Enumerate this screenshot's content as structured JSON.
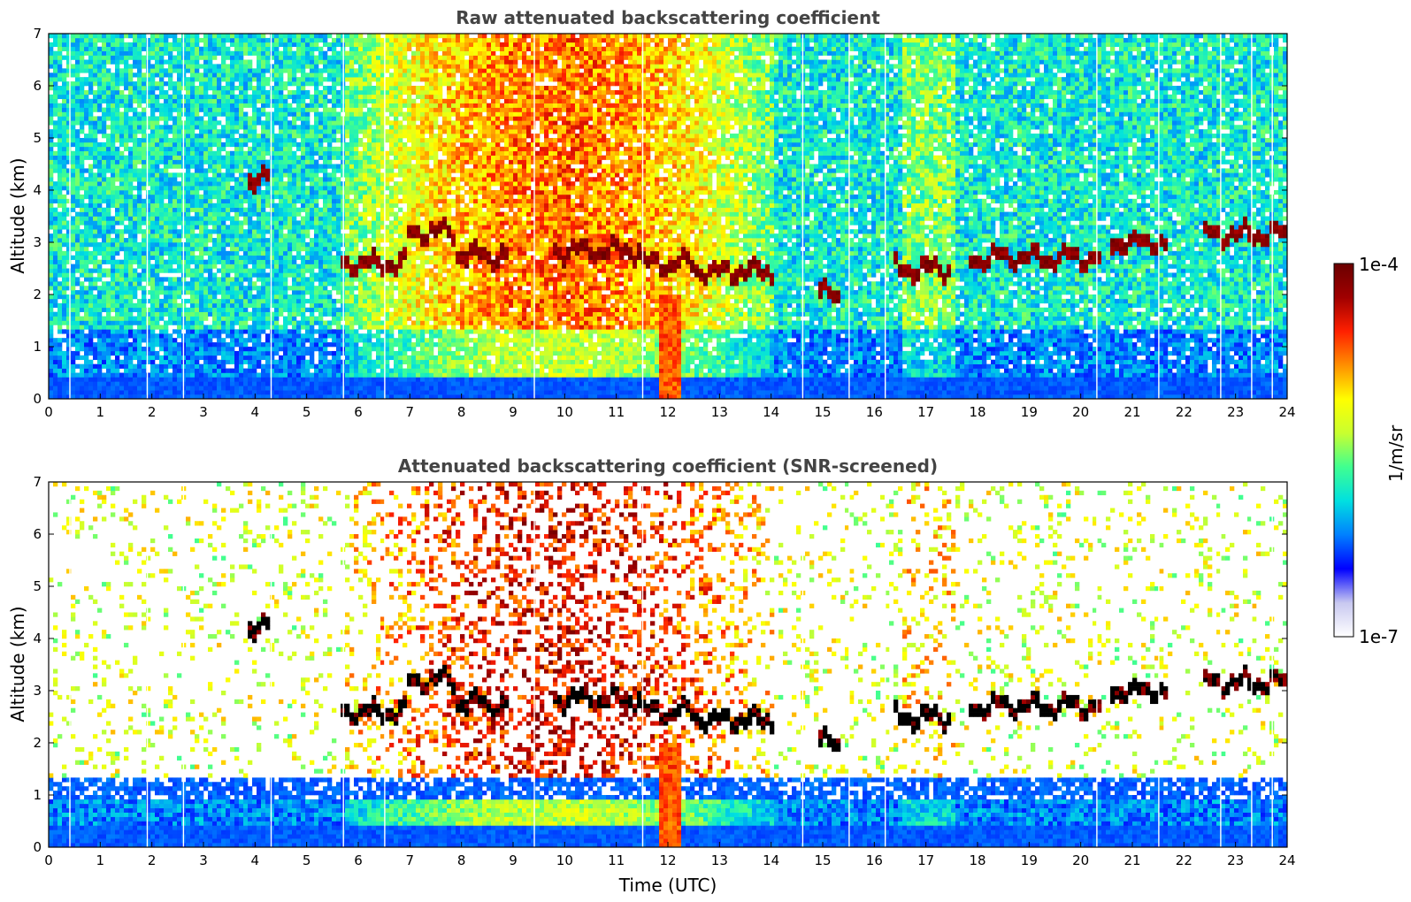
{
  "chart_data": [
    {
      "type": "heatmap",
      "title": "Raw attenuated backscattering coefficient",
      "xlabel": "",
      "ylabel": "Altitude (km)",
      "xlim": [
        0,
        24
      ],
      "ylim": [
        0,
        7
      ],
      "x_ticks": [
        "0",
        "1",
        "2",
        "3",
        "4",
        "5",
        "6",
        "7",
        "8",
        "9",
        "10",
        "11",
        "12",
        "13",
        "14",
        "15",
        "16",
        "17",
        "18",
        "19",
        "20",
        "21",
        "22",
        "23",
        "24"
      ],
      "y_ticks": [
        "0",
        "1",
        "2",
        "3",
        "4",
        "5",
        "6",
        "7"
      ],
      "screened": false,
      "features": {
        "cloud_layers": [
          {
            "t_start": 3.9,
            "t_end": 4.25,
            "alt_km": 4.22
          },
          {
            "t_start": 5.7,
            "t_end": 6.95,
            "alt_km": 2.58
          },
          {
            "t_start": 6.95,
            "t_end": 7.85,
            "alt_km": 3.2
          },
          {
            "t_start": 7.85,
            "t_end": 8.95,
            "alt_km": 2.75
          },
          {
            "t_start": 9.8,
            "t_end": 11.5,
            "alt_km": 2.85
          },
          {
            "t_start": 11.5,
            "t_end": 12.5,
            "alt_km": 2.6
          },
          {
            "t_start": 12.5,
            "t_end": 14.05,
            "alt_km": 2.45
          },
          {
            "t_start": 14.95,
            "t_end": 15.3,
            "alt_km": 2.0
          },
          {
            "t_start": 16.4,
            "t_end": 17.5,
            "alt_km": 2.5
          },
          {
            "t_start": 17.8,
            "t_end": 20.4,
            "alt_km": 2.7
          },
          {
            "t_start": 20.6,
            "t_end": 21.7,
            "alt_km": 3.0
          },
          {
            "t_start": 22.4,
            "t_end": 24.0,
            "alt_km": 3.15
          }
        ],
        "precipitation_fall": {
          "t_start": 11.85,
          "t_end": 12.25,
          "top_km": 2.0
        }
      }
    },
    {
      "type": "heatmap",
      "title": "Attenuated backscattering coefficient (SNR-screened)",
      "xlabel": "Time (UTC)",
      "ylabel": "Altitude (km)",
      "xlim": [
        0,
        24
      ],
      "ylim": [
        0,
        7
      ],
      "x_ticks": [
        "0",
        "1",
        "2",
        "3",
        "4",
        "5",
        "6",
        "7",
        "8",
        "9",
        "10",
        "11",
        "12",
        "13",
        "14",
        "15",
        "16",
        "17",
        "18",
        "19",
        "20",
        "21",
        "22",
        "23",
        "24"
      ],
      "y_ticks": [
        "0",
        "1",
        "2",
        "3",
        "4",
        "5",
        "6",
        "7"
      ],
      "screened": true
    }
  ],
  "colorbar": {
    "label": "1/m/sr",
    "min_label": "1e-7",
    "max_label": "1e-4",
    "scale": "log",
    "colormap": [
      "#ffffff",
      "#c8c8f0",
      "#0000ff",
      "#0080ff",
      "#00e0e0",
      "#40ff90",
      "#c8ff30",
      "#ffff00",
      "#ff9000",
      "#ff2000",
      "#a00000",
      "#6a0000"
    ]
  },
  "colors": {
    "axis": "#000000",
    "title": "#444444",
    "saturated_cloud_screened": "#000000"
  }
}
